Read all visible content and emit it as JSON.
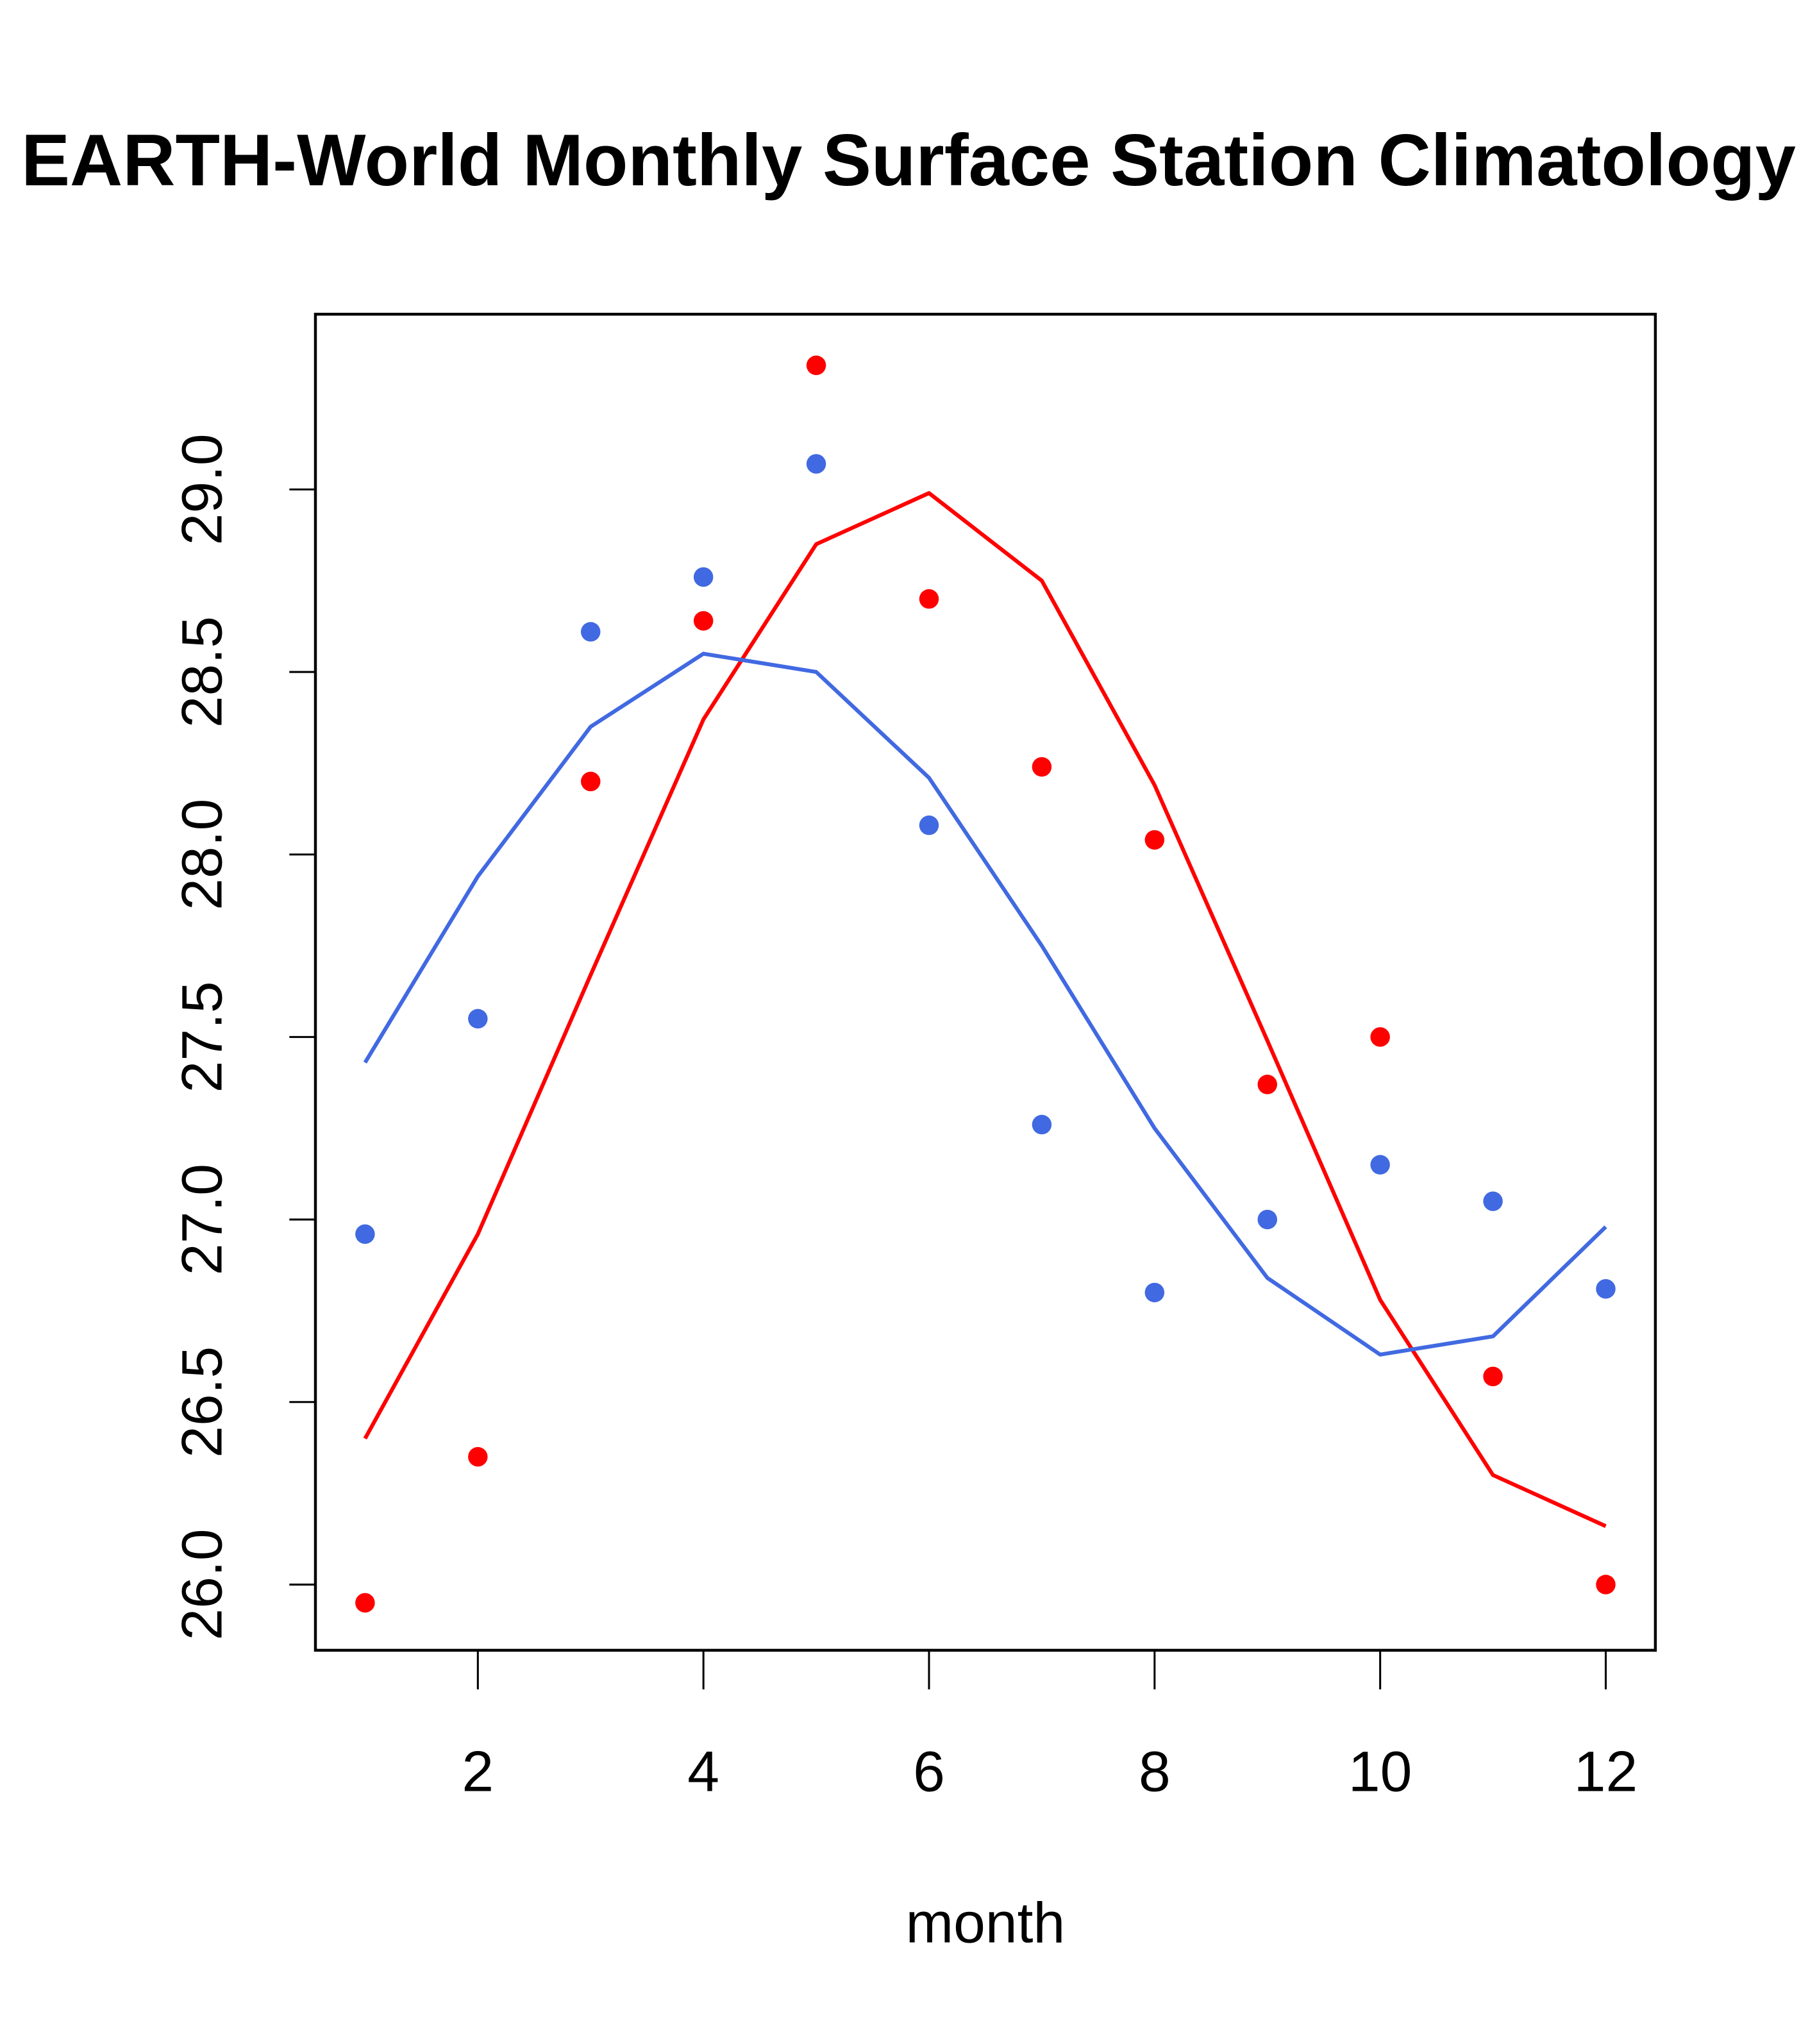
{
  "chart_data": {
    "type": "line",
    "title": "EARTH-World Monthly Surface Station Climatology",
    "xlabel": "month",
    "ylabel": "",
    "xlim": [
      0.56,
      12.44
    ],
    "ylim": [
      25.82,
      29.48
    ],
    "x": [
      1,
      2,
      3,
      4,
      5,
      6,
      7,
      8,
      9,
      10,
      11,
      12
    ],
    "xticks": [
      2,
      4,
      6,
      8,
      10,
      12
    ],
    "xtick_labels": [
      "2",
      "4",
      "6",
      "8",
      "10",
      "12"
    ],
    "yticks": [
      26.0,
      26.5,
      27.0,
      27.5,
      28.0,
      28.5,
      29.0
    ],
    "ytick_labels": [
      "26.0",
      "26.5",
      "27.0",
      "27.5",
      "28.0",
      "28.5",
      "29.0"
    ],
    "grid": false,
    "legend": null,
    "series": [
      {
        "name": "red-points",
        "kind": "scatter",
        "color": "#FF0000",
        "values": [
          25.95,
          26.35,
          28.2,
          28.64,
          29.34,
          28.7,
          28.24,
          28.04,
          27.37,
          27.5,
          26.57,
          26.0
        ]
      },
      {
        "name": "blue-points",
        "kind": "scatter",
        "color": "#4169E1",
        "values": [
          26.96,
          27.55,
          28.61,
          28.76,
          29.07,
          28.08,
          27.26,
          26.8,
          27.0,
          27.15,
          27.05,
          26.81
        ]
      },
      {
        "name": "red-line",
        "kind": "line",
        "color": "#FF0000",
        "values": [
          26.4,
          26.96,
          27.67,
          28.37,
          28.85,
          28.99,
          28.75,
          28.19,
          27.49,
          26.78,
          26.3,
          26.16
        ]
      },
      {
        "name": "blue-line",
        "kind": "line",
        "color": "#4169E1",
        "values": [
          27.43,
          27.94,
          28.35,
          28.55,
          28.5,
          28.21,
          27.75,
          27.25,
          26.84,
          26.63,
          26.68,
          26.98
        ]
      }
    ]
  }
}
